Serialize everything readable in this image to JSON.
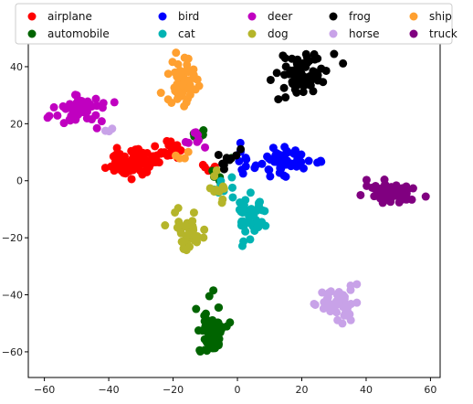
{
  "chart_data": {
    "type": "scatter",
    "title": "",
    "xlabel": "",
    "ylabel": "",
    "xlim": [
      -65,
      63
    ],
    "ylim": [
      -69,
      48
    ],
    "x_ticks": [
      -60,
      -40,
      -20,
      0,
      20,
      40,
      60
    ],
    "y_ticks": [
      -60,
      -40,
      -20,
      0,
      20,
      40
    ],
    "x_tick_labels": [
      "−60",
      "−40",
      "−20",
      "0",
      "20",
      "40",
      "60"
    ],
    "y_tick_labels": [
      "−60",
      "−40",
      "−20",
      "0",
      "20",
      "40"
    ],
    "grid": false,
    "legend_placement": "top",
    "series": [
      {
        "name": "airplane",
        "color": "#ff0000",
        "clusters": [
          {
            "cx": -33,
            "cy": 6,
            "sx": 4,
            "sy": 2.5,
            "n": 70
          },
          {
            "cx": -22,
            "cy": 10,
            "sx": 3,
            "sy": 2,
            "n": 22
          },
          {
            "cx": -9,
            "cy": 5,
            "sx": 2,
            "sy": 2,
            "n": 6
          }
        ]
      },
      {
        "name": "automobile",
        "color": "#006400",
        "clusters": [
          {
            "cx": -8,
            "cy": -53,
            "sx": 2.2,
            "sy": 5,
            "n": 55
          },
          {
            "cx": -12,
            "cy": 18,
            "sx": 1,
            "sy": 2.5,
            "n": 6
          },
          {
            "cx": -6,
            "cy": 2,
            "sx": 2,
            "sy": 3,
            "n": 6
          }
        ]
      },
      {
        "name": "bird",
        "color": "#0000ff",
        "clusters": [
          {
            "cx": 15,
            "cy": 7,
            "sx": 5,
            "sy": 2.5,
            "n": 60
          },
          {
            "cx": 2,
            "cy": 6,
            "sx": 2,
            "sy": 2,
            "n": 8
          }
        ]
      },
      {
        "name": "cat",
        "color": "#00b3b3",
        "clusters": [
          {
            "cx": 4,
            "cy": -13,
            "sx": 2.5,
            "sy": 4,
            "n": 45
          },
          {
            "cx": -3,
            "cy": -3,
            "sx": 2,
            "sy": 2,
            "n": 10
          }
        ]
      },
      {
        "name": "deer",
        "color": "#c000c0",
        "clusters": [
          {
            "cx": -50,
            "cy": 25,
            "sx": 4,
            "sy": 2.5,
            "n": 60
          },
          {
            "cx": -12,
            "cy": 15,
            "sx": 2,
            "sy": 2,
            "n": 8
          }
        ]
      },
      {
        "name": "dog",
        "color": "#b5b52a",
        "clusters": [
          {
            "cx": -16,
            "cy": -20,
            "sx": 2,
            "sy": 3.5,
            "n": 40
          },
          {
            "cx": -7,
            "cy": -4,
            "sx": 2,
            "sy": 3,
            "n": 12
          }
        ]
      },
      {
        "name": "frog",
        "color": "#000000",
        "clusters": [
          {
            "cx": 20,
            "cy": 37,
            "sx": 4,
            "sy": 4.5,
            "n": 65
          },
          {
            "cx": -3,
            "cy": 7,
            "sx": 2,
            "sy": 2,
            "n": 10
          }
        ]
      },
      {
        "name": "horse",
        "color": "#c8a2e8",
        "clusters": [
          {
            "cx": 32,
            "cy": -43,
            "sx": 3,
            "sy": 3,
            "n": 55
          },
          {
            "cx": -40,
            "cy": 18,
            "sx": 1.5,
            "sy": 1,
            "n": 3
          }
        ]
      },
      {
        "name": "ship",
        "color": "#ffa030",
        "clusters": [
          {
            "cx": -17,
            "cy": 34,
            "sx": 3,
            "sy": 5,
            "n": 60
          },
          {
            "cx": -17,
            "cy": 7,
            "sx": 1.5,
            "sy": 2,
            "n": 4
          }
        ]
      },
      {
        "name": "truck",
        "color": "#800080",
        "clusters": [
          {
            "cx": 48,
            "cy": -4,
            "sx": 4,
            "sy": 1.8,
            "n": 70
          }
        ]
      }
    ]
  }
}
